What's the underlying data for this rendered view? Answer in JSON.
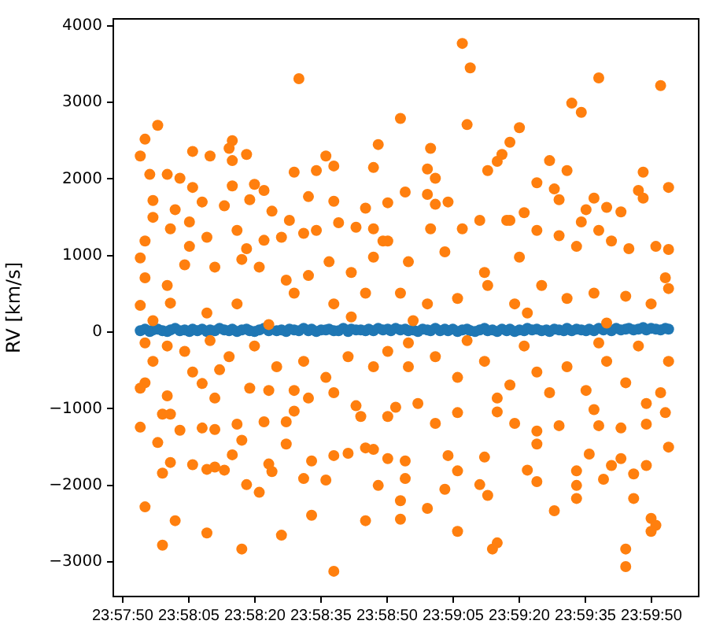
{
  "chart_data": {
    "type": "scatter",
    "ylabel": "RV [km/s]",
    "xlim": [
      23.9633,
      24.0002
    ],
    "xticks": [
      {
        "value": 23.963889,
        "label": "23:57:50"
      },
      {
        "value": 23.968056,
        "label": "23:58:05"
      },
      {
        "value": 23.972222,
        "label": "23:58:20"
      },
      {
        "value": 23.976389,
        "label": "23:58:35"
      },
      {
        "value": 23.980556,
        "label": "23:58:50"
      },
      {
        "value": 23.984722,
        "label": "23:59:05"
      },
      {
        "value": 23.988889,
        "label": "23:59:20"
      },
      {
        "value": 23.993056,
        "label": "23:59:35"
      },
      {
        "value": 23.997222,
        "label": "23:59:50"
      }
    ],
    "ylim": [
      -3450,
      4090
    ],
    "yticks": [
      {
        "value": -3000,
        "label": "−3000"
      },
      {
        "value": -2000,
        "label": "−2000"
      },
      {
        "value": -1000,
        "label": "−1000"
      },
      0,
      1000,
      2000,
      3000,
      4000
    ],
    "grid": false,
    "legend": false,
    "marker": "circle",
    "series": [
      {
        "color": "#1f77b4",
        "x": [
          23.965,
          23.9653,
          23.9656,
          23.9658,
          23.9661,
          23.9664,
          23.9667,
          23.9669,
          23.9672,
          23.9675,
          23.9678,
          23.9681,
          23.9683,
          23.9686,
          23.9689,
          23.9692,
          23.9694,
          23.9697,
          23.97,
          23.9703,
          23.9706,
          23.9708,
          23.9711,
          23.9714,
          23.9717,
          23.9719,
          23.9722,
          23.9725,
          23.9728,
          23.9731,
          23.9736,
          23.9739,
          23.9742,
          23.9744,
          23.9747,
          23.975,
          23.9753,
          23.9756,
          23.9758,
          23.9761,
          23.9764,
          23.9767,
          23.9769,
          23.9772,
          23.9775,
          23.9778,
          23.9781,
          23.9783,
          23.9786,
          23.9789,
          23.9792,
          23.9794,
          23.9797,
          23.98,
          23.9803,
          23.9806,
          23.9808,
          23.9811,
          23.9814,
          23.9817,
          23.9819,
          23.9822,
          23.9825,
          23.9828,
          23.9831,
          23.9833,
          23.9836,
          23.9839,
          23.9842,
          23.9844,
          23.9847,
          23.985,
          23.9853,
          23.9856,
          23.9858,
          23.9861,
          23.9864,
          23.9867,
          23.9869,
          23.9872,
          23.9875,
          23.9878,
          23.9881,
          23.9883,
          23.9886,
          23.9889,
          23.9892,
          23.9894,
          23.9897,
          23.99,
          23.9903,
          23.9906,
          23.9908,
          23.9911,
          23.9914,
          23.9917,
          23.9919,
          23.9922,
          23.9925,
          23.9928,
          23.9931,
          23.9933,
          23.9936,
          23.9939,
          23.9942,
          23.9947,
          23.995,
          23.9953,
          23.9956,
          23.9958,
          23.9961,
          23.9964,
          23.9967,
          23.9969,
          23.9972,
          23.9975,
          23.9978,
          23.9981,
          23.9983
        ],
        "values": [
          20,
          40,
          10,
          30,
          40,
          20,
          10,
          30,
          50,
          20,
          30,
          10,
          40,
          20,
          40,
          10,
          30,
          20,
          50,
          30,
          20,
          40,
          10,
          30,
          40,
          20,
          10,
          30,
          50,
          20,
          20,
          30,
          10,
          40,
          30,
          20,
          50,
          20,
          40,
          10,
          30,
          30,
          40,
          20,
          20,
          50,
          10,
          40,
          30,
          30,
          20,
          40,
          20,
          50,
          30,
          40,
          20,
          50,
          30,
          40,
          20,
          30,
          10,
          40,
          30,
          20,
          50,
          20,
          40,
          20,
          40,
          10,
          30,
          40,
          20,
          10,
          30,
          50,
          20,
          30,
          10,
          40,
          20,
          40,
          10,
          30,
          20,
          50,
          30,
          40,
          20,
          30,
          10,
          40,
          30,
          20,
          50,
          20,
          40,
          30,
          20,
          40,
          20,
          50,
          30,
          20,
          50,
          30,
          40,
          50,
          30,
          40,
          60,
          30,
          50,
          40,
          30,
          50,
          40
        ]
      },
      {
        "color": "#ff7f0e",
        "x": [
          23.975,
          23.9661,
          23.9653,
          23.965,
          23.9683,
          23.9694,
          23.9708,
          23.9706,
          23.9708,
          23.9717,
          23.9656,
          23.9667,
          23.9675,
          23.9747,
          23.9761,
          23.9767,
          23.9772,
          23.98,
          23.9797,
          23.9683,
          23.9708,
          23.9722,
          23.9728,
          23.9658,
          23.9672,
          23.9689,
          23.9703,
          23.9719,
          23.9733,
          23.9756,
          23.9772,
          23.9792,
          23.9806,
          23.9681,
          23.9658,
          23.9853,
          23.9858,
          23.9939,
          23.9978,
          23.9922,
          23.9928,
          23.9814,
          23.9856,
          23.9889,
          23.9883,
          23.9878,
          23.9869,
          23.9875,
          23.9833,
          23.9831,
          23.9836,
          23.9908,
          23.9919,
          23.99,
          23.9967,
          23.9983,
          23.9964,
          23.9967,
          23.9911,
          23.9914,
          23.9936,
          23.9931,
          23.9944,
          23.9953,
          23.9817,
          23.9831,
          23.9836,
          23.9844,
          23.9864,
          23.9881,
          23.9892,
          23.9928,
          23.9983,
          23.9653,
          23.9664,
          23.9672,
          23.9692,
          23.9714,
          23.9725,
          23.9717,
          23.9739,
          23.9758,
          23.9772,
          23.9792,
          23.98,
          23.9753,
          23.9767,
          23.965,
          23.9661,
          23.9664,
          23.9669,
          23.9683,
          23.9692,
          23.9697,
          23.9703,
          23.9708,
          23.9714,
          23.9731,
          23.9733,
          23.9742,
          23.9742,
          23.9758,
          23.9772,
          23.9781,
          23.9792,
          23.9797,
          23.9675,
          23.9689,
          23.9711,
          23.9664,
          23.9669,
          23.9653,
          23.9689,
          23.9697,
          23.9719,
          23.9747,
          23.9772,
          23.9786,
          23.9806,
          23.9814,
          23.9831,
          23.985,
          23.9872,
          23.9875,
          23.9911,
          23.9956,
          23.9956,
          23.9972,
          23.9975,
          23.9972,
          23.9961,
          23.9925,
          23.9842,
          23.9814,
          23.9817,
          23.9867,
          23.9864,
          23.9869,
          23.985,
          23.9894,
          23.99,
          23.9925,
          23.9942,
          23.9947,
          23.9961,
          23.9969,
          23.9925,
          23.9806,
          23.9817,
          23.9844,
          23.9933,
          23.9953,
          23.9983,
          23.99,
          23.9914,
          23.9939,
          23.9953,
          23.9886,
          23.99,
          23.9875,
          23.985,
          23.9836,
          23.9811,
          23.9981,
          23.9969,
          23.9983,
          23.9936,
          23.965,
          23.9653,
          23.9669,
          23.9681,
          23.9692,
          23.9711,
          23.9717,
          23.9728,
          23.9739,
          23.9744,
          23.9753,
          23.9761,
          23.9775,
          23.9786,
          23.9797,
          23.9803,
          23.9653,
          23.9667,
          23.9678,
          23.9697,
          23.9714,
          23.9725,
          23.9742,
          23.9756,
          23.9769,
          23.9783,
          23.9797,
          23.965,
          23.9669,
          23.9692,
          23.9711,
          23.9747,
          23.9772,
          23.9792,
          23.9653,
          23.9667,
          23.9678,
          23.9694,
          23.9706,
          23.9722,
          23.9736,
          23.9753,
          23.9767,
          23.9781,
          23.9797,
          23.9658,
          23.9683,
          23.97,
          23.9731,
          23.9756,
          23.965,
          23.9667,
          23.9697,
          23.9728,
          23.9747,
          23.9789,
          23.9806,
          23.9819,
          23.9833,
          23.9842,
          23.9853,
          23.9867,
          23.9883,
          23.9889,
          23.99,
          23.9914,
          23.9925,
          23.9939,
          23.9947,
          23.9958,
          23.9975,
          23.9981,
          23.9814,
          23.9831,
          23.985,
          23.9869,
          23.9886,
          23.9903,
          23.9919,
          23.9936,
          23.9956,
          23.9972,
          23.9983,
          23.9806,
          23.9819,
          23.9836,
          23.985,
          23.9867,
          23.9883,
          23.99,
          23.9908,
          23.9919,
          23.9931,
          23.9944,
          23.9956,
          23.9969,
          23.9978,
          23.9825,
          23.9875,
          23.9819,
          23.9856,
          23.9892,
          23.9939,
          23.9964,
          23.9658,
          23.9731,
          23.9783,
          23.9822,
          23.9894,
          23.9944
        ],
        "values": [
          3310,
          2700,
          2520,
          2300,
          2360,
          2300,
          2500,
          2400,
          2240,
          2320,
          2060,
          2060,
          2010,
          2090,
          2110,
          2300,
          2170,
          2450,
          2150,
          1890,
          1910,
          1930,
          1850,
          1720,
          1600,
          1700,
          1650,
          1730,
          1580,
          1770,
          1710,
          1620,
          1690,
          1440,
          1500,
          3770,
          3450,
          3320,
          3220,
          2990,
          2870,
          2790,
          2710,
          2670,
          2480,
          2320,
          2110,
          2230,
          2400,
          2130,
          2010,
          2240,
          2110,
          1950,
          2090,
          1890,
          1850,
          1750,
          1870,
          1730,
          1750,
          1600,
          1630,
          1570,
          1830,
          1800,
          1670,
          1700,
          1460,
          1460,
          1560,
          1440,
          1080,
          -2280,
          -2780,
          -2460,
          -2620,
          -2830,
          -2090,
          -1990,
          -2650,
          -2390,
          -3120,
          -2460,
          -2000,
          -1910,
          -1930,
          -1240,
          -1440,
          -1840,
          -1700,
          -1730,
          -1790,
          -1760,
          -1800,
          -1600,
          -1410,
          -1720,
          -1820,
          -1460,
          -1170,
          -1680,
          -1610,
          -1580,
          -1510,
          -1530,
          -1280,
          -1250,
          -1200,
          -1070,
          -1070,
          -660,
          -670,
          -860,
          -730,
          -760,
          -790,
          -960,
          -1100,
          -2440,
          -2300,
          -2600,
          -2830,
          -2750,
          -2330,
          -2830,
          -3060,
          -2430,
          -2520,
          -2600,
          -2170,
          -2170,
          -2050,
          -2200,
          -1910,
          -1630,
          -1990,
          -2130,
          -1810,
          -1800,
          -1950,
          -2000,
          -1920,
          -1740,
          -1850,
          -1740,
          -1810,
          -1650,
          -1680,
          -1610,
          -1590,
          -1650,
          -1500,
          -1460,
          -1220,
          -1220,
          -1250,
          -1190,
          -1290,
          -1040,
          -1050,
          -1190,
          -980,
          -1050,
          -1200,
          -380,
          -1010,
          970,
          1190,
          1350,
          1120,
          1240,
          1330,
          1090,
          1200,
          1240,
          1460,
          1290,
          1330,
          1430,
          1370,
          1350,
          1190,
          710,
          610,
          880,
          850,
          950,
          850,
          680,
          740,
          920,
          780,
          980,
          350,
          380,
          250,
          370,
          510,
          370,
          510,
          -140,
          -180,
          -250,
          -110,
          -320,
          -180,
          -450,
          -380,
          -590,
          -320,
          -450,
          -380,
          -520,
          -490,
          -760,
          -860,
          -730,
          -830,
          -1270,
          -1170,
          -1030,
          -1100,
          1190,
          920,
          1350,
          1050,
          1350,
          780,
          1460,
          980,
          1330,
          1260,
          1120,
          1330,
          1190,
          1090,
          1120,
          710,
          510,
          370,
          440,
          610,
          370,
          610,
          440,
          510,
          470,
          370,
          570,
          -250,
          -450,
          -320,
          -590,
          -380,
          -690,
          -520,
          -790,
          -450,
          -760,
          -380,
          -660,
          -930,
          -790,
          -930,
          -860,
          -140,
          -110,
          -180,
          -140,
          -180,
          150,
          100,
          200,
          150,
          250,
          120
        ]
      }
    ]
  }
}
